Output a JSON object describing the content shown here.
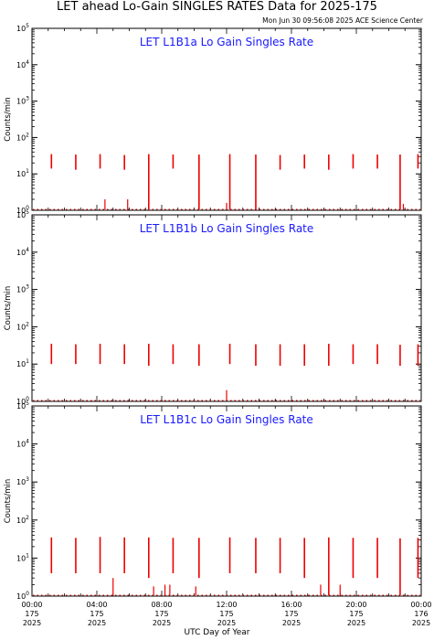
{
  "header": {
    "title": "LET ahead Lo-Gain SINGLES RATES Data for 2025-175",
    "timestamp": "Mon Jun 30 09:56:08 2025 ACE Science Center"
  },
  "x_axis": {
    "title": "UTC Day of Year",
    "ticks": [
      {
        "hour": 0,
        "time": "00:00",
        "doy": "175",
        "year": "2025"
      },
      {
        "hour": 4,
        "time": "04:00",
        "doy": "175",
        "year": "2025"
      },
      {
        "hour": 8,
        "time": "08:00",
        "doy": "175",
        "year": "2025"
      },
      {
        "hour": 12,
        "time": "12:00",
        "doy": "175",
        "year": "2025"
      },
      {
        "hour": 16,
        "time": "16:00",
        "doy": "175",
        "year": "2025"
      },
      {
        "hour": 20,
        "time": "20:00",
        "doy": "175",
        "year": "2025"
      },
      {
        "hour": 24,
        "time": "00:00",
        "doy": "176",
        "year": "2025"
      }
    ]
  },
  "colors": {
    "data": "#ee0000",
    "panel_title": "#1a1aff",
    "axes": "#000000"
  },
  "chart_data": [
    {
      "type": "scatter",
      "title": "LET L1B1a Lo Gain Singles Rate",
      "ylabel": "Counts/min",
      "yscale": "log",
      "ylim": [
        1,
        100000
      ],
      "xlim_hours": [
        0,
        24
      ],
      "y_tick_labels": [
        "10^0",
        "10^1",
        "10^2",
        "10^3",
        "10^4",
        "10^5"
      ],
      "bursts": [
        {
          "x": 1.2,
          "ymin": 14,
          "ymax": 35
        },
        {
          "x": 2.7,
          "ymin": 13,
          "ymax": 34
        },
        {
          "x": 4.2,
          "ymin": 14,
          "ymax": 35
        },
        {
          "x": 5.7,
          "ymin": 13,
          "ymax": 33
        },
        {
          "x": 7.2,
          "ymin": 1,
          "ymax": 35
        },
        {
          "x": 8.7,
          "ymin": 14,
          "ymax": 34
        },
        {
          "x": 10.3,
          "ymin": 1,
          "ymax": 34
        },
        {
          "x": 12.2,
          "ymin": 1,
          "ymax": 35
        },
        {
          "x": 13.8,
          "ymin": 1,
          "ymax": 34
        },
        {
          "x": 15.3,
          "ymin": 13,
          "ymax": 33
        },
        {
          "x": 16.8,
          "ymin": 14,
          "ymax": 34
        },
        {
          "x": 18.3,
          "ymin": 13,
          "ymax": 34
        },
        {
          "x": 19.8,
          "ymin": 14,
          "ymax": 35
        },
        {
          "x": 21.3,
          "ymin": 14,
          "ymax": 34
        },
        {
          "x": 22.7,
          "ymin": 1,
          "ymax": 34
        },
        {
          "x": 23.8,
          "ymin": 14,
          "ymax": 35
        }
      ],
      "baseline_value": 1,
      "spikes": [
        {
          "x": 4.5,
          "y": 2
        },
        {
          "x": 5.9,
          "y": 2
        },
        {
          "x": 12.0,
          "y": 1.6
        },
        {
          "x": 22.9,
          "y": 1.5
        }
      ]
    },
    {
      "type": "scatter",
      "title": "LET L1B1b Lo Gain Singles Rate",
      "ylabel": "Counts/min",
      "yscale": "log",
      "ylim": [
        1,
        100000
      ],
      "xlim_hours": [
        0,
        24
      ],
      "y_tick_labels": [
        "10^0",
        "10^1",
        "10^2",
        "10^3",
        "10^4",
        "10^5"
      ],
      "bursts": [
        {
          "x": 1.2,
          "ymin": 10,
          "ymax": 35
        },
        {
          "x": 2.7,
          "ymin": 10,
          "ymax": 34
        },
        {
          "x": 4.2,
          "ymin": 10,
          "ymax": 35
        },
        {
          "x": 5.7,
          "ymin": 10,
          "ymax": 34
        },
        {
          "x": 7.2,
          "ymin": 9,
          "ymax": 35
        },
        {
          "x": 8.7,
          "ymin": 10,
          "ymax": 34
        },
        {
          "x": 10.3,
          "ymin": 9,
          "ymax": 34
        },
        {
          "x": 12.2,
          "ymin": 10,
          "ymax": 35
        },
        {
          "x": 13.8,
          "ymin": 9,
          "ymax": 34
        },
        {
          "x": 15.3,
          "ymin": 9,
          "ymax": 34
        },
        {
          "x": 16.8,
          "ymin": 9,
          "ymax": 34
        },
        {
          "x": 18.3,
          "ymin": 9,
          "ymax": 35
        },
        {
          "x": 19.8,
          "ymin": 10,
          "ymax": 34
        },
        {
          "x": 21.3,
          "ymin": 10,
          "ymax": 34
        },
        {
          "x": 22.7,
          "ymin": 9,
          "ymax": 33
        },
        {
          "x": 23.8,
          "ymin": 9,
          "ymax": 34
        }
      ],
      "baseline_value": 1,
      "spikes": [
        {
          "x": 12.0,
          "y": 2
        }
      ]
    },
    {
      "type": "scatter",
      "title": "LET L1B1c Lo Gain Singles Rate",
      "ylabel": "Counts/min",
      "yscale": "log",
      "ylim": [
        1,
        100000
      ],
      "xlim_hours": [
        0,
        24
      ],
      "y_tick_labels": [
        "10^0",
        "10^1",
        "10^2",
        "10^3",
        "10^4",
        "10^5"
      ],
      "bursts": [
        {
          "x": 1.2,
          "ymin": 4,
          "ymax": 35
        },
        {
          "x": 2.7,
          "ymin": 4,
          "ymax": 34
        },
        {
          "x": 4.2,
          "ymin": 4,
          "ymax": 36
        },
        {
          "x": 5.7,
          "ymin": 4,
          "ymax": 35
        },
        {
          "x": 7.2,
          "ymin": 3,
          "ymax": 35
        },
        {
          "x": 8.7,
          "ymin": 4,
          "ymax": 34
        },
        {
          "x": 10.3,
          "ymin": 3,
          "ymax": 34
        },
        {
          "x": 12.2,
          "ymin": 4,
          "ymax": 35
        },
        {
          "x": 13.8,
          "ymin": 4,
          "ymax": 34
        },
        {
          "x": 15.3,
          "ymin": 4,
          "ymax": 34
        },
        {
          "x": 16.8,
          "ymin": 3,
          "ymax": 34
        },
        {
          "x": 18.3,
          "ymin": 1,
          "ymax": 35
        },
        {
          "x": 19.8,
          "ymin": 3,
          "ymax": 34
        },
        {
          "x": 21.3,
          "ymin": 3,
          "ymax": 34
        },
        {
          "x": 22.7,
          "ymin": 1,
          "ymax": 33
        },
        {
          "x": 23.8,
          "ymin": 3,
          "ymax": 34
        }
      ],
      "baseline_value": 1,
      "spikes": [
        {
          "x": 5.0,
          "y": 3
        },
        {
          "x": 7.5,
          "y": 1.8
        },
        {
          "x": 8.2,
          "y": 2
        },
        {
          "x": 8.5,
          "y": 2
        },
        {
          "x": 10.1,
          "y": 1.8
        },
        {
          "x": 17.8,
          "y": 2
        },
        {
          "x": 19.0,
          "y": 2
        }
      ]
    }
  ]
}
